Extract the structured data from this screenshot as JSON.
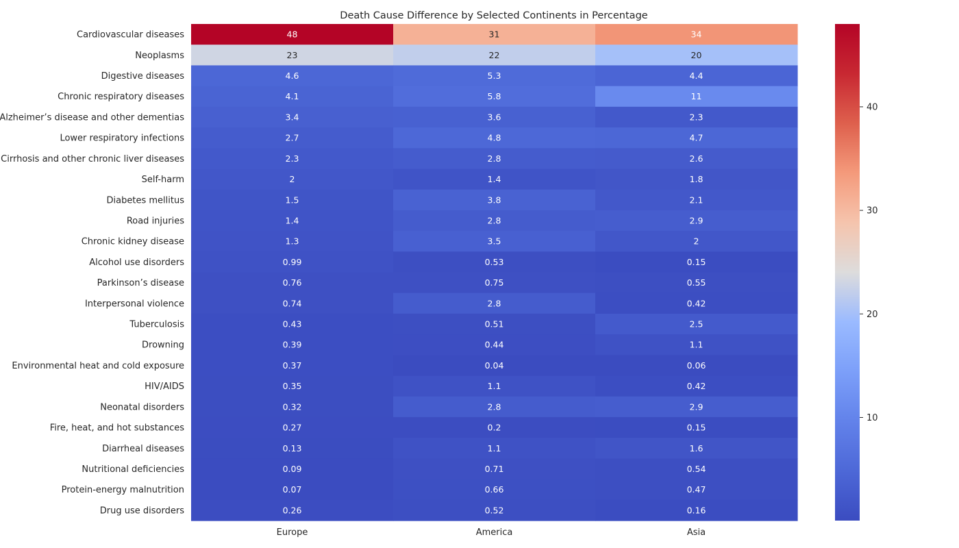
{
  "chart_data": {
    "type": "heatmap",
    "title": "Death Cause Difference by Selected Continents in Percentage",
    "columns": [
      "Europe",
      "America",
      "Asia"
    ],
    "rows": [
      "Cardiovascular diseases",
      "Neoplasms",
      "Digestive diseases",
      "Chronic respiratory diseases",
      "Alzheimer’s disease and other dementias",
      "Lower respiratory infections",
      "Cirrhosis and other chronic liver diseases",
      "Self-harm",
      "Diabetes mellitus",
      "Road injuries",
      "Chronic kidney disease",
      "Alcohol use disorders",
      "Parkinson’s disease",
      "Interpersonal violence",
      "Tuberculosis",
      "Drowning",
      "Environmental heat and cold exposure",
      "HIV/AIDS",
      "Neonatal disorders",
      "Fire, heat, and hot substances",
      "Diarrheal diseases",
      "Nutritional deficiencies",
      "Protein-energy malnutrition",
      "Drug use disorders"
    ],
    "values": [
      [
        48,
        31,
        34
      ],
      [
        23,
        22,
        20
      ],
      [
        4.6,
        5.3,
        4.4
      ],
      [
        4.1,
        5.8,
        11
      ],
      [
        3.4,
        3.6,
        2.3
      ],
      [
        2.7,
        4.8,
        4.7
      ],
      [
        2.3,
        2.8,
        2.6
      ],
      [
        2,
        1.4,
        1.8
      ],
      [
        1.5,
        3.8,
        2.1
      ],
      [
        1.4,
        2.8,
        2.9
      ],
      [
        1.3,
        3.5,
        2
      ],
      [
        0.99,
        0.53,
        0.15
      ],
      [
        0.76,
        0.75,
        0.55
      ],
      [
        0.74,
        2.8,
        0.42
      ],
      [
        0.43,
        0.51,
        2.5
      ],
      [
        0.39,
        0.44,
        1.1
      ],
      [
        0.37,
        0.04,
        0.06
      ],
      [
        0.35,
        1.1,
        0.42
      ],
      [
        0.32,
        2.8,
        2.9
      ],
      [
        0.27,
        0.2,
        0.15
      ],
      [
        0.13,
        1.1,
        1.6
      ],
      [
        0.09,
        0.71,
        0.54
      ],
      [
        0.07,
        0.66,
        0.47
      ],
      [
        0.26,
        0.52,
        0.16
      ]
    ],
    "colormap": "coolwarm",
    "vmin": 0.04,
    "vmax": 48,
    "colorbar_ticks": [
      10,
      20,
      30,
      40
    ],
    "grid": false,
    "colorbar_position": "right"
  }
}
